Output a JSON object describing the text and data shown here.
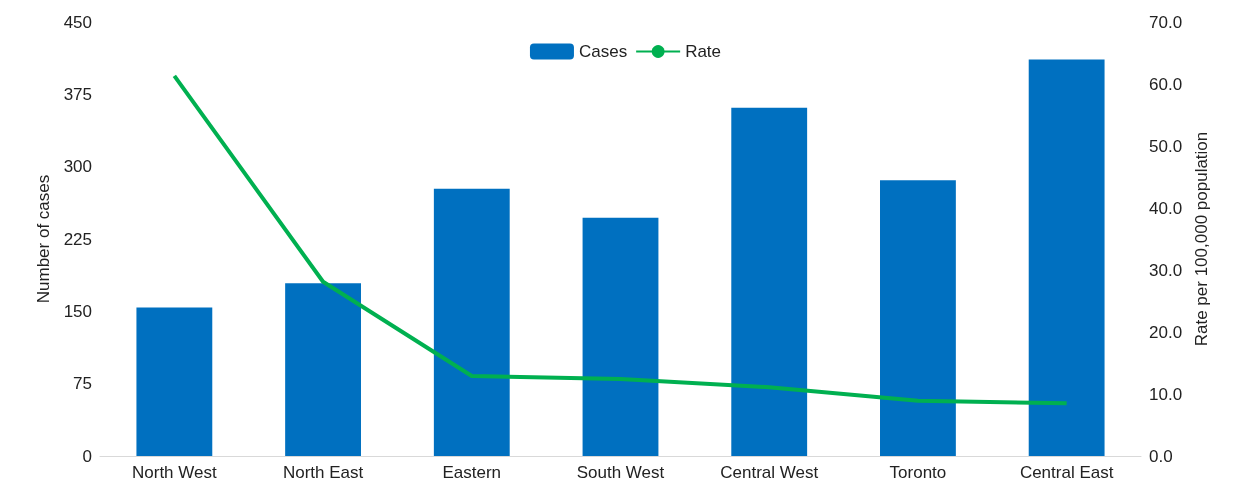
{
  "chart_data": {
    "type": "bar",
    "categories": [
      "North West",
      "North East",
      "Eastern",
      "South West",
      "Central West",
      "Toronto",
      "Central East"
    ],
    "series": [
      {
        "name": "Cases",
        "color": "#0070c0",
        "values": [
          154,
          179,
          277,
          247,
          361,
          286,
          411
        ]
      },
      {
        "name": "Rate",
        "type": "line",
        "axis": "y2",
        "color": "#00b050",
        "values": [
          61.3,
          28.1,
          12.9,
          12.4,
          11.1,
          8.9,
          8.5
        ]
      }
    ],
    "ylabel": "Number of cases",
    "y2label": "Rate per 100,000 population",
    "ylim": [
      0,
      450
    ],
    "yticks": [
      0,
      75,
      150,
      225,
      300,
      375,
      450
    ],
    "y2lim": [
      0,
      70
    ],
    "y2ticks": [
      {
        "value": 0,
        "label": "0.0"
      },
      {
        "value": 10,
        "label": "10.0"
      },
      {
        "value": 20,
        "label": "20.0"
      },
      {
        "value": 30,
        "label": "30.0"
      },
      {
        "value": 40,
        "label": "40.0"
      },
      {
        "value": 50,
        "label": "50.0"
      },
      {
        "value": 60,
        "label": "60.0"
      },
      {
        "value": 70,
        "label": "70.0"
      }
    ],
    "grid": false,
    "legend": "top",
    "marker": "none",
    "line_style": "solid"
  }
}
